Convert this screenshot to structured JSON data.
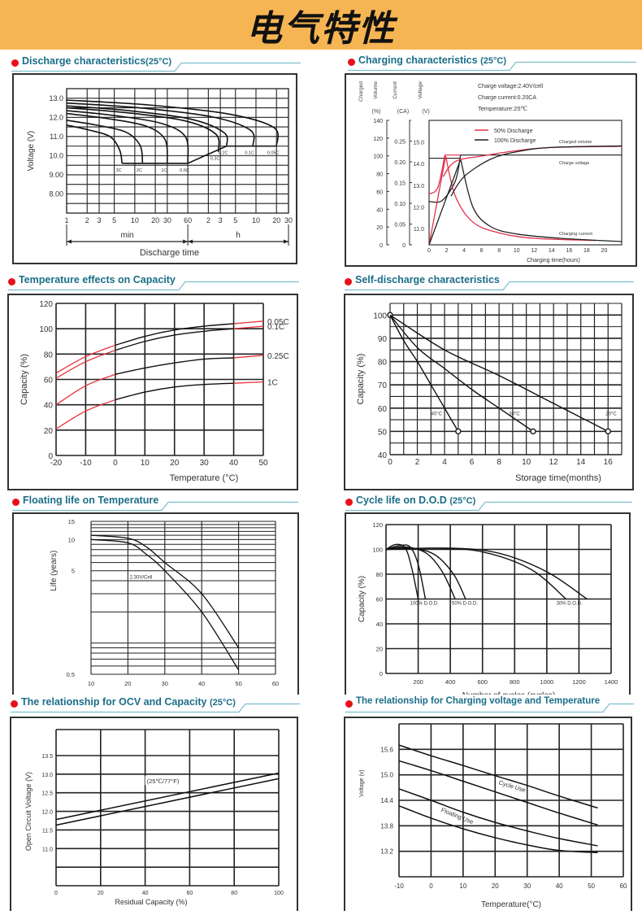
{
  "page": {
    "title": "电气特性",
    "accent_color": "#f6b553",
    "heading_color": "#1b6e88",
    "bullet_color": "#e8101a"
  },
  "sections": [
    {
      "title": "Discharge characteristics",
      "suffix": "(25°C)"
    },
    {
      "title": "Charging characteristics",
      "suffix": "(25°C)"
    },
    {
      "title": "Temperature effects on Capacity",
      "suffix": ""
    },
    {
      "title": "Self-discharge characteristics",
      "suffix": ""
    },
    {
      "title": "Floating life on Temperature",
      "suffix": ""
    },
    {
      "title": "Cycle life on D.O.D",
      "suffix": "(25°C)"
    },
    {
      "title": "The relationship  for OCV and Capacity",
      "suffix": "(25°C)"
    },
    {
      "title": "The relationship for Charging voltage and Temperature",
      "suffix": ""
    }
  ],
  "chart_data": [
    {
      "id": "discharge",
      "type": "line",
      "title": "Discharge characteristics(25°C)",
      "xlabel": "Discharge time",
      "ylabel": "Voltage (V)",
      "x_scale": "log",
      "x_ticks_min": [
        "1",
        "2",
        "3",
        "5",
        "10",
        "20",
        "30",
        "60"
      ],
      "x_ticks_h": [
        "2",
        "3",
        "5",
        "10",
        "20",
        "30"
      ],
      "x_unit_labels": [
        "min",
        "h"
      ],
      "y_ticks": [
        "13.0",
        "12.0",
        "11.0",
        "10.0",
        "9.00",
        "8.00"
      ],
      "ylim": [
        7.0,
        13.5
      ],
      "series": [
        {
          "name": "3C",
          "end_minutes": 6.5,
          "start_v": 11.6,
          "cutoff_v": 9.6
        },
        {
          "name": "2C",
          "end_minutes": 13,
          "start_v": 11.85,
          "cutoff_v": 9.6
        },
        {
          "name": "1C",
          "end_minutes": 30,
          "start_v": 12.2,
          "cutoff_v": 9.6
        },
        {
          "name": "0.6C",
          "end_minutes": 60,
          "start_v": 12.35,
          "cutoff_v": 9.6
        },
        {
          "name": "0.3C",
          "end_minutes": 168,
          "start_v": 12.5,
          "cutoff_v": 10.2
        },
        {
          "name": "0.2C",
          "end_minutes": 222,
          "start_v": 12.6,
          "cutoff_v": 10.5
        },
        {
          "name": "0.1C",
          "end_minutes": 540,
          "start_v": 12.75,
          "cutoff_v": 10.5
        },
        {
          "name": "0.05C",
          "end_minutes": 1200,
          "start_v": 12.9,
          "cutoff_v": 10.5
        }
      ]
    },
    {
      "id": "charging",
      "type": "line",
      "title": "Charging characteristics (25°C)",
      "notes": [
        "Charge voltage:2.40V/cell",
        "Charge current:0.20CA",
        "Temperature:25℃"
      ],
      "axis_titles": [
        {
          "lines": [
            "Charged",
            "Volume"
          ],
          "unit": "(%)"
        },
        {
          "lines": [
            "Current"
          ],
          "unit": "(CA)"
        },
        {
          "lines": [
            "Voltage"
          ],
          "unit": "(V)"
        }
      ],
      "y1_ticks": [
        "140",
        "120",
        "100",
        "80",
        "60",
        "40",
        "20",
        "0"
      ],
      "y2_ticks": [
        "0.25",
        "0.20",
        "0.15",
        "0.10",
        "0.05",
        "0"
      ],
      "y3_ticks": [
        "15.0",
        "14.0",
        "13.0",
        "12.0",
        "11.0"
      ],
      "x_ticks": [
        "0",
        "2",
        "4",
        "6",
        "8",
        "10",
        "12",
        "14",
        "16",
        "18",
        "20"
      ],
      "xlabel": "Charging time(hours)",
      "xlim": [
        0,
        22
      ],
      "legend": [
        {
          "name": "50% Discharge",
          "color": "#e0304a"
        },
        {
          "name": "100% Discharge",
          "color": "#222222"
        }
      ],
      "curve_labels": [
        "Charged volume",
        "Charge voltage",
        "Charging current"
      ]
    },
    {
      "id": "temperature",
      "type": "line",
      "title": "Temperature effects on Capacity",
      "xlabel": "Temperature (°C)",
      "ylabel": "Capacity (%)",
      "x_ticks": [
        "-20",
        "-10",
        "0",
        "10",
        "20",
        "30",
        "40",
        "50"
      ],
      "y_ticks": [
        "120",
        "100",
        "80",
        "60",
        "40",
        "20",
        "0"
      ],
      "xlim": [
        -20,
        50
      ],
      "ylim": [
        0,
        120
      ],
      "x": [
        -20,
        -10,
        0,
        10,
        20,
        30,
        40,
        50
      ],
      "series": [
        {
          "name": "0.05C",
          "values": [
            65,
            78,
            87,
            94,
            99,
            102,
            104,
            106
          ]
        },
        {
          "name": "0.1C",
          "values": [
            61,
            74,
            83,
            90,
            95,
            98,
            100,
            102
          ]
        },
        {
          "name": "0.25C",
          "values": [
            40,
            55,
            64,
            69,
            73,
            76,
            77,
            79
          ]
        },
        {
          "name": "1C",
          "values": [
            21,
            35,
            44,
            50,
            54,
            56,
            57,
            58
          ]
        }
      ]
    },
    {
      "id": "self_discharge",
      "type": "line",
      "title": "Self-discharge characteristics",
      "xlabel": "Storage time(months)",
      "ylabel": "Capacity (%)",
      "x_ticks": [
        "0",
        "2",
        "4",
        "6",
        "8",
        "10",
        "12",
        "14",
        "16"
      ],
      "y_ticks": [
        "100",
        "90",
        "80",
        "70",
        "60",
        "50",
        "40"
      ],
      "xlim": [
        0,
        17
      ],
      "ylim": [
        40,
        105
      ],
      "series": [
        {
          "name": "40°C",
          "x": [
            0,
            1,
            2,
            3,
            4,
            5
          ],
          "values": [
            100,
            89,
            80,
            70,
            60,
            50
          ]
        },
        {
          "name": "30°C",
          "x": [
            0,
            2,
            4,
            6,
            8,
            10.5
          ],
          "values": [
            100,
            86,
            77,
            68,
            60,
            50
          ]
        },
        {
          "name": "20°C",
          "x": [
            0,
            4,
            8,
            12,
            16
          ],
          "values": [
            100,
            85,
            74,
            62,
            50
          ]
        }
      ]
    },
    {
      "id": "floating",
      "type": "area",
      "title": "Floating life on Temperature",
      "xlabel": "",
      "ylabel": "Life (years)",
      "x_ticks": [
        "10",
        "20",
        "30",
        "40",
        "50",
        "60"
      ],
      "y_ticks": [
        "15",
        "10",
        "5",
        "0.5"
      ],
      "band_label": "2.30V/Cell",
      "x": [
        10,
        20,
        25,
        30,
        40,
        50
      ],
      "upper": [
        11,
        10.3,
        8.5,
        6.0,
        3.0,
        0.9
      ],
      "lower": [
        10,
        9.3,
        7.2,
        5.0,
        2.0,
        0.55
      ]
    },
    {
      "id": "cycle_life",
      "type": "line",
      "title": "Cycle life on D.O.D (25°C)",
      "xlabel": "Number of cycles (cycles)",
      "ylabel": "Capacity (%)",
      "x_ticks": [
        "200",
        "400",
        "600",
        "800",
        "1000",
        "1200",
        "1400"
      ],
      "y_ticks": [
        "120",
        "100",
        "80",
        "60",
        "40",
        "20",
        "0"
      ],
      "xlim": [
        0,
        1400
      ],
      "ylim": [
        0,
        120
      ],
      "series_labels": [
        "100% D.O.D.",
        "50% D.O.D.",
        "30% D.O.D."
      ],
      "series": [
        {
          "name": "100% D.O.D. a",
          "x": [
            0,
            60,
            120,
            160,
            200
          ],
          "values": [
            100,
            104,
            101,
            85,
            60
          ]
        },
        {
          "name": "100% D.O.D. b",
          "x": [
            0,
            80,
            150,
            200,
            245
          ],
          "values": [
            100,
            103,
            102,
            88,
            60
          ]
        },
        {
          "name": "50% D.O.D. a",
          "x": [
            0,
            120,
            250,
            350,
            430
          ],
          "values": [
            100,
            102,
            97,
            82,
            60
          ]
        },
        {
          "name": "50% D.O.D. b",
          "x": [
            0,
            150,
            300,
            420,
            495
          ],
          "values": [
            100,
            101,
            96,
            80,
            60
          ]
        },
        {
          "name": "30% D.O.D. a",
          "x": [
            0,
            300,
            600,
            900,
            1120
          ],
          "values": [
            100,
            101,
            98,
            84,
            60
          ]
        },
        {
          "name": "30% D.O.D. b",
          "x": [
            0,
            400,
            700,
            1000,
            1250
          ],
          "values": [
            100,
            101,
            97,
            82,
            60
          ]
        }
      ]
    },
    {
      "id": "ocv",
      "type": "line",
      "title": "The relationship for OCV and Capacity (25°C)",
      "xlabel": "Residual Capacity (%)",
      "ylabel": "Open Circuit Voltage (V)",
      "x_ticks": [
        "0",
        "20",
        "40",
        "60",
        "80",
        "100"
      ],
      "y_ticks": [
        "13.5",
        "13.0",
        "12.5",
        "12.0",
        "11.5",
        "11.0"
      ],
      "xlim": [
        0,
        100
      ],
      "ylim": [
        10.0,
        14.0
      ],
      "band_label": "(25℃/77°F)",
      "x": [
        0,
        100
      ],
      "upper": [
        11.78,
        13.03
      ],
      "lower": [
        11.63,
        12.88
      ]
    },
    {
      "id": "charge_voltage",
      "type": "line",
      "title": "The relationship for Charging voltage and Temperature",
      "xlabel": "Temperature(°C)",
      "ylabel": "Voltage (v)",
      "x_ticks": [
        "-10",
        "0",
        "10",
        "20",
        "30",
        "40",
        "50",
        "60"
      ],
      "y_ticks": [
        "15.6",
        "15.0",
        "14.4",
        "13.8",
        "13.2"
      ],
      "xlim": [
        -10,
        60
      ],
      "ylim": [
        12.6,
        16.2
      ],
      "band_labels": [
        "Cycle Use",
        "Floating Use"
      ],
      "x": [
        -10,
        0,
        10,
        20,
        30,
        40,
        52
      ],
      "series": [
        {
          "name": "Cycle Use upper",
          "values": [
            15.7,
            15.45,
            15.22,
            14.98,
            14.75,
            14.5,
            14.22
          ]
        },
        {
          "name": "Cycle Use lower",
          "values": [
            15.33,
            15.1,
            14.85,
            14.6,
            14.35,
            14.1,
            13.82
          ]
        },
        {
          "name": "Floating Use upper",
          "values": [
            14.67,
            14.4,
            14.12,
            13.88,
            13.68,
            13.5,
            13.33
          ]
        },
        {
          "name": "Floating Use lower",
          "values": [
            14.27,
            13.98,
            13.73,
            13.52,
            13.35,
            13.22,
            13.17
          ]
        }
      ]
    }
  ]
}
